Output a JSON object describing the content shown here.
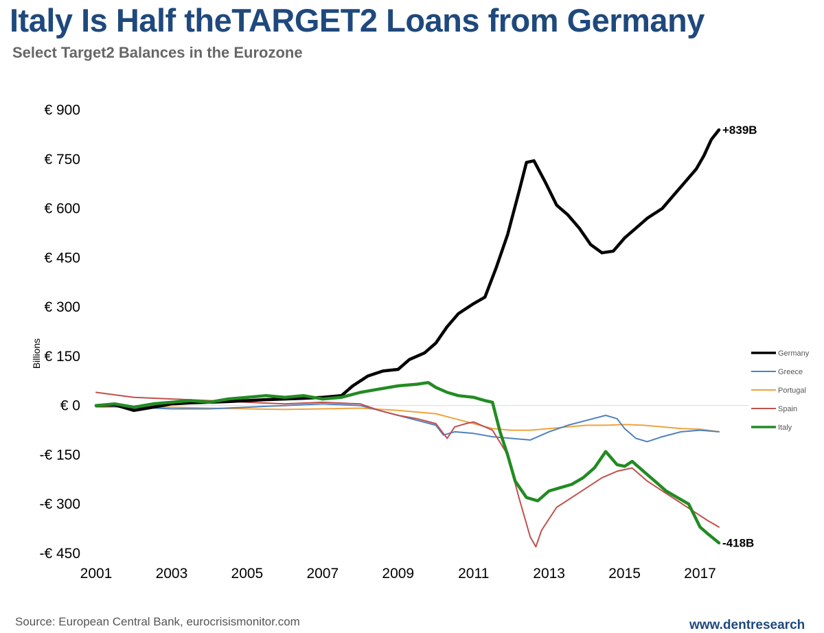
{
  "chart_data": {
    "type": "line",
    "title": "Italy Is Half theTARGET2 Loans from Germany",
    "subtitle": "Select Target2 Balances in the Eurozone",
    "ylabel": "Billions",
    "xlabel": "",
    "xlim": [
      2001,
      2017.5
    ],
    "ylim": [
      -450,
      900
    ],
    "y_ticks": [
      900,
      750,
      600,
      450,
      300,
      150,
      0,
      -150,
      -300,
      -450
    ],
    "y_tick_labels": [
      "€ 900",
      "€ 750",
      "€ 600",
      "€ 450",
      "€ 300",
      "€ 150",
      "€ 0",
      "-€ 150",
      "-€ 300",
      "-€ 450"
    ],
    "x_ticks": [
      2001,
      2003,
      2005,
      2007,
      2009,
      2011,
      2013,
      2015,
      2017
    ],
    "x_tick_labels": [
      "2001",
      "2003",
      "2005",
      "2007",
      "2009",
      "2011",
      "2013",
      "2015",
      "2017"
    ],
    "legend_position": "right",
    "annotations": [
      {
        "text": "+839B",
        "series": "Germany"
      },
      {
        "text": "-418B",
        "series": "Italy"
      }
    ],
    "series": [
      {
        "name": "Germany",
        "color": "#000000",
        "width": 4.5,
        "x": [
          2001,
          2001.5,
          2002,
          2002.5,
          2003,
          2003.5,
          2004,
          2004.5,
          2005,
          2005.5,
          2006,
          2006.5,
          2007,
          2007.5,
          2007.8,
          2008.2,
          2008.6,
          2009,
          2009.3,
          2009.7,
          2010,
          2010.3,
          2010.6,
          2011,
          2011.3,
          2011.6,
          2011.9,
          2012.2,
          2012.4,
          2012.6,
          2012.9,
          2013.2,
          2013.5,
          2013.8,
          2014.1,
          2014.4,
          2014.7,
          2015,
          2015.3,
          2015.6,
          2016,
          2016.3,
          2016.6,
          2016.9,
          2017.1,
          2017.3,
          2017.5
        ],
        "values": [
          0,
          2,
          -15,
          -5,
          5,
          8,
          10,
          12,
          15,
          18,
          20,
          22,
          25,
          30,
          60,
          90,
          105,
          110,
          140,
          160,
          190,
          240,
          280,
          310,
          330,
          420,
          520,
          650,
          740,
          745,
          680,
          610,
          580,
          540,
          490,
          465,
          470,
          510,
          540,
          570,
          600,
          640,
          680,
          720,
          760,
          810,
          839
        ]
      },
      {
        "name": "Greece",
        "color": "#4f81bd",
        "width": 2,
        "x": [
          2001,
          2002,
          2003,
          2004,
          2005,
          2006,
          2007,
          2008,
          2008.5,
          2009,
          2009.5,
          2010,
          2010.2,
          2010.5,
          2011,
          2011.5,
          2012,
          2012.5,
          2013,
          2013.5,
          2014,
          2014.5,
          2014.8,
          2015,
          2015.3,
          2015.6,
          2016,
          2016.5,
          2017,
          2017.5
        ],
        "values": [
          0,
          -5,
          -10,
          -10,
          -5,
          0,
          5,
          0,
          -15,
          -30,
          -45,
          -60,
          -90,
          -80,
          -85,
          -95,
          -100,
          -105,
          -80,
          -60,
          -45,
          -30,
          -40,
          -70,
          -100,
          -110,
          -95,
          -80,
          -75,
          -80
        ]
      },
      {
        "name": "Portugal",
        "color": "#f0a23c",
        "width": 2,
        "x": [
          2001,
          2002,
          2003,
          2004,
          2005,
          2006,
          2007,
          2008,
          2009,
          2010,
          2010.5,
          2011,
          2011.5,
          2012,
          2012.5,
          2013,
          2013.5,
          2014,
          2014.5,
          2015,
          2015.5,
          2016,
          2016.5,
          2017,
          2017.5
        ],
        "values": [
          -5,
          -5,
          -5,
          -8,
          -10,
          -12,
          -10,
          -8,
          -15,
          -25,
          -40,
          -55,
          -70,
          -75,
          -75,
          -70,
          -65,
          -60,
          -60,
          -58,
          -60,
          -65,
          -70,
          -72,
          -80
        ]
      },
      {
        "name": "Spain",
        "color": "#c0504d",
        "width": 2,
        "x": [
          2001,
          2002,
          2003,
          2004,
          2005,
          2006,
          2007,
          2008,
          2008.5,
          2009,
          2009.5,
          2010,
          2010.3,
          2010.5,
          2010.8,
          2011,
          2011.5,
          2011.9,
          2012.2,
          2012.5,
          2012.65,
          2012.8,
          2013.2,
          2013.6,
          2014,
          2014.4,
          2014.8,
          2015.2,
          2015.6,
          2016,
          2016.4,
          2016.8,
          2017.2,
          2017.5
        ],
        "values": [
          40,
          25,
          20,
          15,
          10,
          5,
          10,
          5,
          -15,
          -30,
          -40,
          -55,
          -100,
          -65,
          -55,
          -50,
          -75,
          -150,
          -280,
          -400,
          -430,
          -380,
          -310,
          -280,
          -250,
          -220,
          -200,
          -190,
          -230,
          -260,
          -290,
          -320,
          -350,
          -370
        ]
      },
      {
        "name": "Italy",
        "color": "#228b22",
        "width": 4.5,
        "x": [
          2001,
          2001.5,
          2002,
          2002.5,
          2003,
          2003.5,
          2004,
          2004.5,
          2005,
          2005.5,
          2006,
          2006.5,
          2007,
          2007.5,
          2008,
          2008.5,
          2009,
          2009.5,
          2009.8,
          2010,
          2010.3,
          2010.6,
          2011,
          2011.3,
          2011.5,
          2011.7,
          2011.9,
          2012.1,
          2012.4,
          2012.7,
          2013,
          2013.3,
          2013.6,
          2013.9,
          2014.2,
          2014.5,
          2014.8,
          2015,
          2015.2,
          2015.5,
          2015.8,
          2016.1,
          2016.4,
          2016.7,
          2017,
          2017.2,
          2017.5
        ],
        "values": [
          0,
          5,
          -5,
          5,
          10,
          15,
          10,
          20,
          25,
          30,
          25,
          30,
          20,
          25,
          40,
          50,
          60,
          65,
          70,
          55,
          40,
          30,
          25,
          15,
          10,
          -80,
          -150,
          -230,
          -280,
          -290,
          -260,
          -250,
          -240,
          -220,
          -190,
          -140,
          -180,
          -185,
          -170,
          -200,
          -230,
          -260,
          -280,
          -300,
          -370,
          -390,
          -418
        ]
      }
    ]
  },
  "footer": {
    "source": "Source: European Central Bank, eurocrisismonitor.com",
    "brand": "www.dentresearch"
  }
}
